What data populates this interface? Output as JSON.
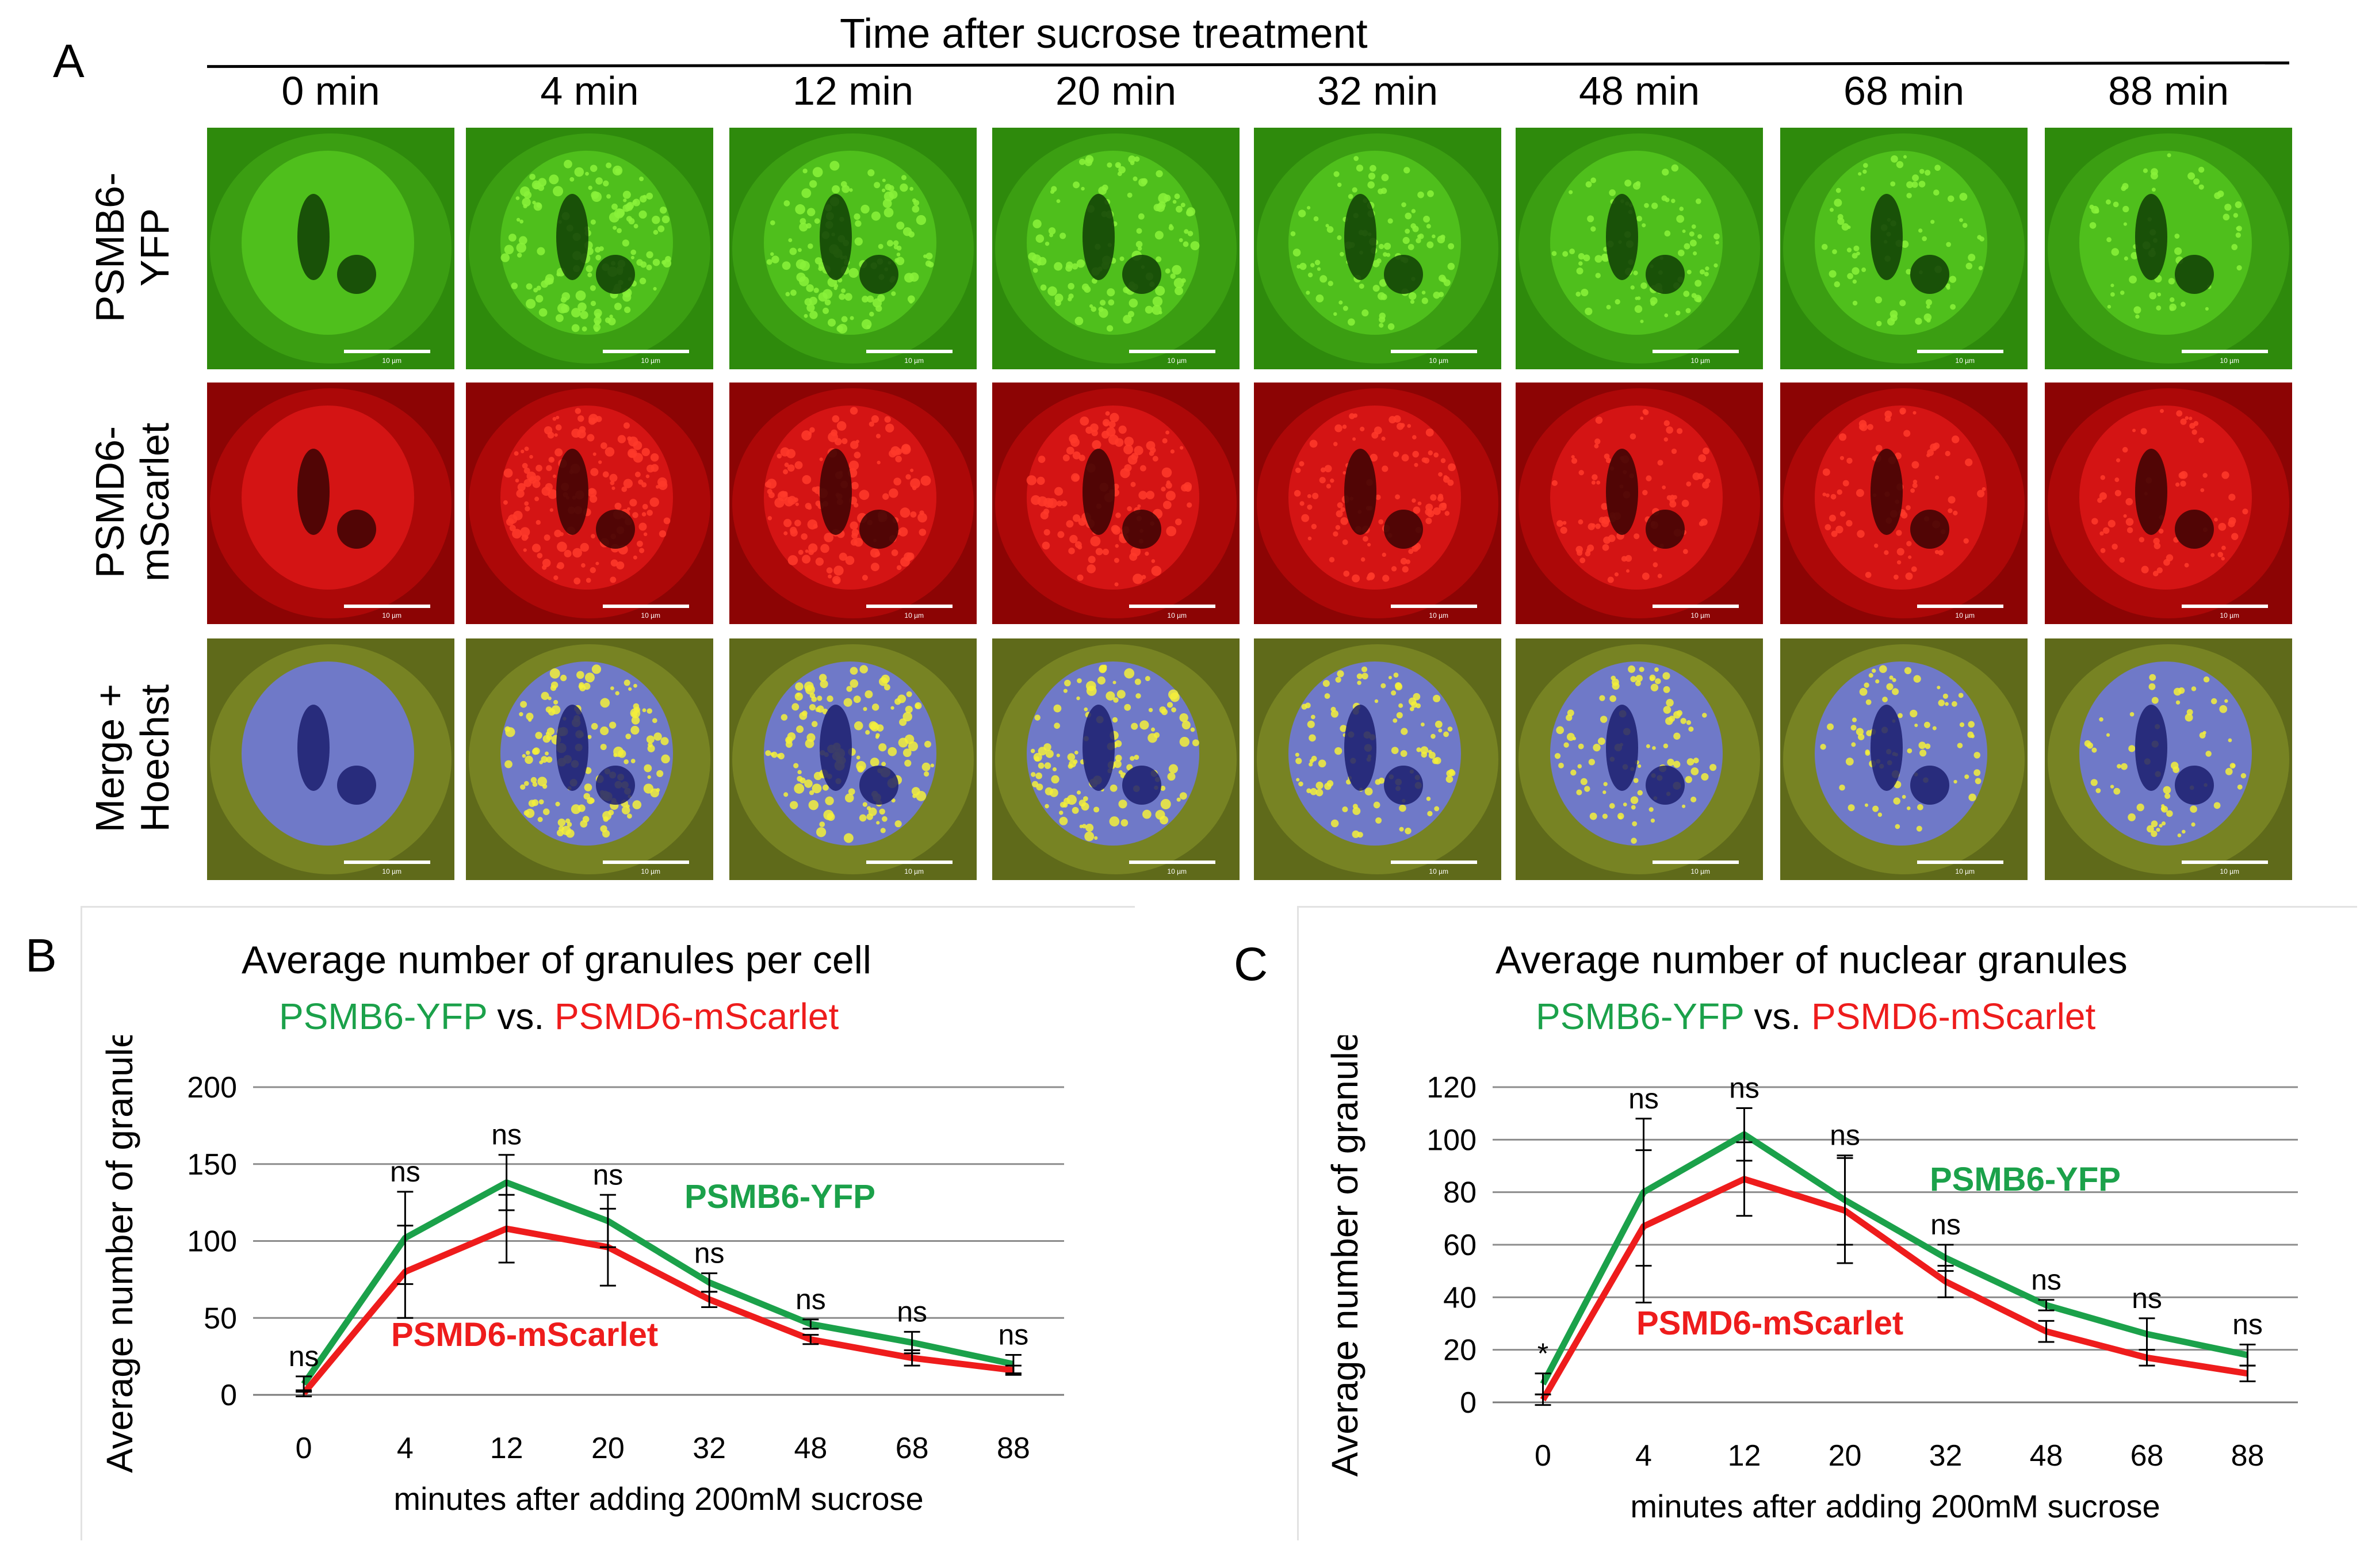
{
  "panel_a": {
    "letter": "A",
    "title": "Time after sucrose treatment",
    "time_points": [
      "0 min",
      "4 min",
      "12 min",
      "20 min",
      "32 min",
      "48 min",
      "68 min",
      "88 min"
    ],
    "rows": [
      {
        "label_line1": "PSMB6-",
        "label_line2": "YFP",
        "color": "#3cbf12"
      },
      {
        "label_line1": "PSMD6-",
        "label_line2": "mScarlet",
        "color": "#d40808"
      },
      {
        "label_line1": "Merge +",
        "label_line2": "Hoechst",
        "color": "#8a9a2a"
      }
    ],
    "scale_bar_text": "10 µm"
  },
  "panel_b": {
    "letter": "B",
    "title": "Average number of granules per cell",
    "subtitle_green": "PSMB6-YFP",
    "subtitle_vs": " vs. ",
    "subtitle_red": "PSMD6-mScarlet"
  },
  "panel_c": {
    "letter": "C",
    "title": "Average number of nuclear granules",
    "subtitle_green": "PSMB6-YFP",
    "subtitle_vs": " vs. ",
    "subtitle_red": "PSMD6-mScarlet"
  },
  "chart_data": [
    {
      "type": "line",
      "categories": [
        "0",
        "4",
        "12",
        "20",
        "32",
        "48",
        "68",
        "88"
      ],
      "xlabel": "minutes after adding 200mM sucrose",
      "ylabel": "Average number of granules",
      "ylim": [
        0,
        200
      ],
      "yticks": [
        0,
        50,
        100,
        150,
        200
      ],
      "grid": true,
      "series": [
        {
          "name": "PSMB6-YFP",
          "color": "#1ba14a",
          "values": [
            7,
            102,
            138,
            113,
            73,
            46,
            34,
            20
          ],
          "errors": [
            5,
            30,
            18,
            17,
            6,
            3,
            7,
            6
          ]
        },
        {
          "name": "PSMD6-mScarlet",
          "color": "#ee1c1c",
          "values": [
            1,
            80,
            108,
            96,
            62,
            36,
            24,
            16
          ],
          "errors": [
            2,
            30,
            22,
            25,
            5,
            3,
            5,
            3
          ]
        }
      ],
      "annotations": [
        "ns",
        "ns",
        "ns",
        "ns",
        "ns",
        "ns",
        "ns",
        "ns"
      ]
    },
    {
      "type": "line",
      "categories": [
        "0",
        "4",
        "12",
        "20",
        "32",
        "48",
        "68",
        "88"
      ],
      "xlabel": "minutes after adding 200mM sucrose",
      "ylabel": "Average number of granules",
      "ylim": [
        0,
        120
      ],
      "yticks": [
        0,
        20,
        40,
        60,
        80,
        100,
        120
      ],
      "grid": true,
      "series": [
        {
          "name": "PSMB6-YFP",
          "color": "#1ba14a",
          "values": [
            7,
            80,
            102,
            77,
            55,
            37,
            26,
            18
          ],
          "errors": [
            4,
            28,
            10,
            17,
            5,
            2,
            6,
            4
          ]
        },
        {
          "name": "PSMD6-mScarlet",
          "color": "#ee1c1c",
          "values": [
            1,
            67,
            85,
            73,
            46,
            27,
            17,
            11
          ],
          "errors": [
            2,
            29,
            14,
            20,
            6,
            4,
            3,
            3
          ]
        }
      ],
      "annotations": [
        "*",
        "ns",
        "ns",
        "ns",
        "ns",
        "ns",
        "ns",
        "ns"
      ]
    }
  ]
}
